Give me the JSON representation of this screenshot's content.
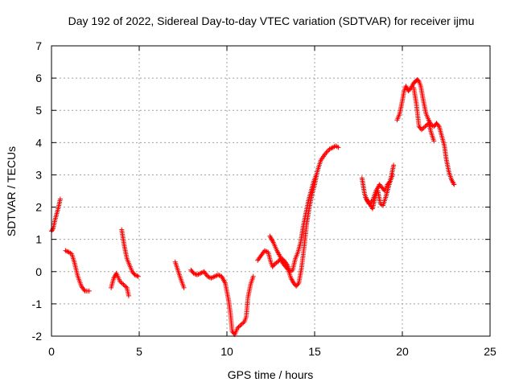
{
  "chart_data": {
    "type": "scatter",
    "title": "Day 192 of 2022, Sidereal Day-to-day VTEC variation (SDTVAR) for receiver ijmu",
    "xlabel": "GPS time / hours",
    "ylabel": "SDTVAR / TECUs",
    "xlim": [
      0,
      25
    ],
    "ylim": [
      -2,
      7
    ],
    "x_ticks": [
      "0",
      "5",
      "10",
      "15",
      "20",
      "25"
    ],
    "y_ticks": [
      "-2",
      "-1",
      "0",
      "1",
      "2",
      "3",
      "4",
      "5",
      "6",
      "7"
    ],
    "grid": true,
    "marker": "+",
    "series": [
      {
        "name": "SDTVAR",
        "color": "#ff0000",
        "segments": [
          [
            [
              0.0,
              1.25
            ],
            [
              0.1,
              1.35
            ],
            [
              0.2,
              1.6
            ],
            [
              0.3,
              1.8
            ],
            [
              0.4,
              2.0
            ],
            [
              0.5,
              2.25
            ]
          ],
          [
            [
              0.8,
              0.65
            ],
            [
              1.0,
              0.6
            ],
            [
              1.15,
              0.55
            ],
            [
              1.3,
              0.3
            ],
            [
              1.5,
              -0.15
            ],
            [
              1.7,
              -0.45
            ],
            [
              1.9,
              -0.6
            ],
            [
              2.15,
              -0.6
            ]
          ],
          [
            [
              3.4,
              -0.5
            ],
            [
              3.55,
              -0.2
            ],
            [
              3.7,
              -0.05
            ],
            [
              3.9,
              -0.3
            ],
            [
              4.1,
              -0.4
            ],
            [
              4.3,
              -0.5
            ],
            [
              4.4,
              -0.75
            ]
          ],
          [
            [
              4.0,
              1.3
            ],
            [
              4.15,
              0.8
            ],
            [
              4.3,
              0.4
            ],
            [
              4.45,
              0.2
            ],
            [
              4.6,
              0.0
            ],
            [
              4.75,
              -0.1
            ],
            [
              4.95,
              -0.15
            ]
          ],
          [
            [
              7.05,
              0.3
            ],
            [
              7.2,
              0.05
            ],
            [
              7.35,
              -0.2
            ],
            [
              7.55,
              -0.5
            ]
          ],
          [
            [
              7.95,
              0.05
            ],
            [
              8.1,
              -0.05
            ],
            [
              8.3,
              -0.1
            ],
            [
              8.5,
              -0.05
            ],
            [
              8.7,
              0.0
            ],
            [
              8.9,
              -0.15
            ],
            [
              9.1,
              -0.2
            ],
            [
              9.3,
              -0.15
            ],
            [
              9.5,
              -0.1
            ],
            [
              9.7,
              -0.15
            ],
            [
              9.9,
              -0.35
            ],
            [
              10.1,
              -0.9
            ],
            [
              10.2,
              -1.3
            ],
            [
              10.3,
              -1.85
            ],
            [
              10.45,
              -1.95
            ],
            [
              10.6,
              -1.75
            ],
            [
              10.8,
              -1.65
            ],
            [
              11.0,
              -1.55
            ],
            [
              11.1,
              -1.4
            ],
            [
              11.2,
              -0.8
            ],
            [
              11.35,
              -0.4
            ],
            [
              11.5,
              -0.15
            ]
          ],
          [
            [
              11.75,
              0.35
            ],
            [
              11.95,
              0.5
            ],
            [
              12.15,
              0.65
            ],
            [
              12.35,
              0.6
            ],
            [
              12.5,
              0.3
            ],
            [
              12.6,
              0.15
            ],
            [
              12.75,
              0.25
            ],
            [
              12.9,
              0.3
            ],
            [
              13.05,
              0.4
            ],
            [
              13.2,
              0.25
            ],
            [
              13.35,
              0.15
            ],
            [
              13.5,
              0.05
            ],
            [
              13.65,
              -0.2
            ],
            [
              13.8,
              -0.35
            ],
            [
              13.95,
              -0.45
            ],
            [
              14.1,
              -0.35
            ],
            [
              14.25,
              0.1
            ],
            [
              14.4,
              0.75
            ],
            [
              14.55,
              1.5
            ],
            [
              14.7,
              2.0
            ],
            [
              14.85,
              2.4
            ],
            [
              15.0,
              2.7
            ],
            [
              15.15,
              3.1
            ],
            [
              15.35,
              3.45
            ],
            [
              15.6,
              3.65
            ],
            [
              15.85,
              3.8
            ],
            [
              16.05,
              3.85
            ],
            [
              16.2,
              3.9
            ],
            [
              16.35,
              3.85
            ]
          ],
          [
            [
              12.45,
              1.1
            ],
            [
              12.65,
              0.9
            ],
            [
              12.85,
              0.65
            ],
            [
              13.05,
              0.45
            ],
            [
              13.25,
              0.35
            ],
            [
              13.45,
              0.2
            ],
            [
              13.6,
              0.0
            ],
            [
              13.75,
              0.05
            ],
            [
              13.9,
              0.4
            ],
            [
              14.05,
              0.6
            ],
            [
              14.2,
              0.9
            ],
            [
              14.35,
              1.4
            ],
            [
              14.5,
              1.8
            ],
            [
              14.65,
              2.2
            ],
            [
              14.8,
              2.5
            ],
            [
              14.95,
              2.8
            ],
            [
              15.1,
              3.0
            ]
          ],
          [
            [
              17.7,
              2.9
            ],
            [
              17.85,
              2.4
            ],
            [
              18.0,
              2.2
            ],
            [
              18.15,
              2.1
            ],
            [
              18.3,
              1.95
            ],
            [
              18.45,
              2.3
            ],
            [
              18.6,
              2.5
            ],
            [
              18.75,
              2.1
            ],
            [
              18.9,
              2.05
            ],
            [
              19.05,
              2.3
            ],
            [
              19.2,
              2.6
            ],
            [
              19.35,
              2.9
            ],
            [
              19.5,
              3.3
            ]
          ],
          [
            [
              17.9,
              2.3
            ],
            [
              18.1,
              2.1
            ],
            [
              18.3,
              2.2
            ],
            [
              18.5,
              2.5
            ],
            [
              18.7,
              2.7
            ],
            [
              18.85,
              2.6
            ],
            [
              19.0,
              2.5
            ],
            [
              19.15,
              2.7
            ],
            [
              19.3,
              2.8
            ],
            [
              19.45,
              3.0
            ]
          ],
          [
            [
              19.7,
              4.7
            ],
            [
              19.85,
              4.9
            ],
            [
              20.0,
              5.3
            ],
            [
              20.1,
              5.6
            ],
            [
              20.2,
              5.75
            ],
            [
              20.35,
              5.6
            ],
            [
              20.5,
              5.7
            ],
            [
              20.65,
              5.85
            ],
            [
              20.75,
              5.9
            ],
            [
              20.85,
              5.95
            ],
            [
              20.95,
              5.9
            ],
            [
              21.05,
              5.75
            ],
            [
              21.2,
              5.3
            ],
            [
              21.35,
              4.9
            ],
            [
              21.5,
              4.7
            ],
            [
              21.65,
              4.55
            ],
            [
              21.8,
              4.5
            ],
            [
              21.95,
              4.6
            ],
            [
              22.1,
              4.5
            ],
            [
              22.25,
              4.2
            ],
            [
              22.4,
              3.9
            ],
            [
              22.5,
              3.5
            ],
            [
              22.65,
              3.1
            ],
            [
              22.8,
              2.85
            ],
            [
              22.95,
              2.7
            ]
          ],
          [
            [
              20.65,
              5.7
            ],
            [
              20.8,
              5.2
            ],
            [
              20.95,
              4.5
            ],
            [
              21.1,
              4.4
            ],
            [
              21.3,
              4.5
            ],
            [
              21.5,
              4.6
            ],
            [
              21.65,
              4.3
            ],
            [
              21.8,
              4.05
            ]
          ]
        ]
      }
    ]
  }
}
